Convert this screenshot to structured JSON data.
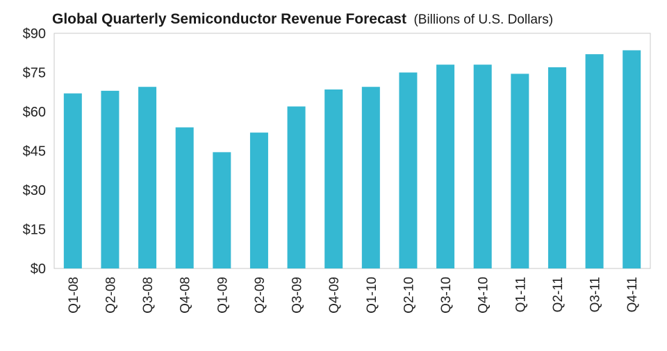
{
  "chart_data": {
    "type": "bar",
    "title": "Global Quarterly Semiconductor Revenue Forecast",
    "subtitle": "(Billions of U.S. Dollars)",
    "xlabel": "",
    "ylabel": "",
    "categories": [
      "Q1-08",
      "Q2-08",
      "Q3-08",
      "Q4-08",
      "Q1-09",
      "Q2-09",
      "Q3-09",
      "Q4-09",
      "Q1-10",
      "Q2-10",
      "Q3-10",
      "Q4-10",
      "Q1-11",
      "Q2-11",
      "Q3-11",
      "Q4-11"
    ],
    "values": [
      67,
      68,
      69.5,
      54,
      44.5,
      52,
      62,
      68.5,
      69.5,
      75,
      78,
      78,
      74.5,
      77,
      82,
      83.5
    ],
    "ylim": [
      0,
      90
    ],
    "yticks": [
      0,
      15,
      30,
      45,
      60,
      75,
      90
    ],
    "ytick_labels": [
      "$0",
      "$15",
      "$30",
      "$45",
      "$60",
      "$75",
      "$90"
    ],
    "bar_color": "#35b8d2",
    "grid": false,
    "legend": "none"
  }
}
